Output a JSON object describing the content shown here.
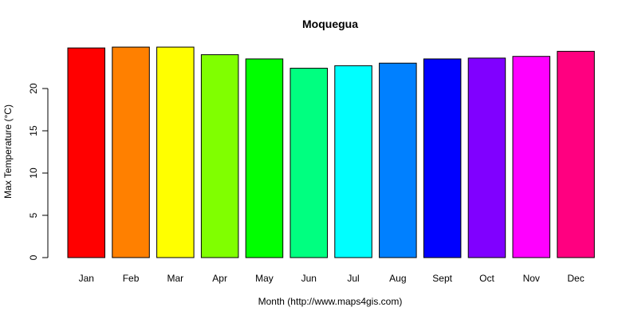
{
  "chart_data": {
    "type": "bar",
    "title": "Moquegua",
    "xlabel": "Month (http://www.maps4gis.com)",
    "ylabel": "Max Temperature (°C)",
    "categories": [
      "Jan",
      "Feb",
      "Mar",
      "Apr",
      "May",
      "Jun",
      "Jul",
      "Aug",
      "Sept",
      "Oct",
      "Nov",
      "Dec"
    ],
    "values": [
      24.8,
      24.9,
      24.9,
      24.0,
      23.5,
      22.4,
      22.7,
      23.0,
      23.5,
      23.6,
      23.8,
      24.4
    ],
    "colors": [
      "#FF0000",
      "#FF8000",
      "#FFFF00",
      "#80FF00",
      "#00FF00",
      "#00FF80",
      "#00FFFF",
      "#0080FF",
      "#0000FF",
      "#8000FF",
      "#FF00FF",
      "#FF0080"
    ],
    "yticks": [
      0,
      5,
      10,
      15,
      20
    ],
    "ylim": [
      0,
      25
    ],
    "grid": false,
    "legend": "none"
  }
}
